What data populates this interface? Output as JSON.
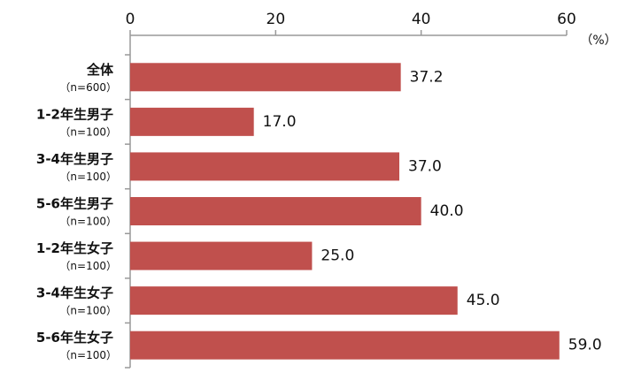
{
  "chart_data": {
    "type": "hbar",
    "categories": [
      "全体",
      "1-2年生男子",
      "3-4年生男子",
      "5-6年生男子",
      "1-2年生女子",
      "3-4年生女子",
      "5-6年生女子"
    ],
    "sample_sizes": [
      "（n=600）",
      "（n=100）",
      "（n=100）",
      "（n=100）",
      "（n=100）",
      "（n=100）",
      "（n=100）"
    ],
    "values": [
      37.2,
      17,
      37,
      40,
      25,
      45,
      59
    ],
    "value_labels": [
      "37.2",
      "17.0",
      "37.0",
      "40.0",
      "25.0",
      "45.0",
      "59.0"
    ],
    "color": "#c0504d",
    "x_unit": "（%）",
    "xlim": [
      0,
      60
    ],
    "xticks": [
      0,
      20,
      40,
      60
    ],
    "grid": false
  }
}
